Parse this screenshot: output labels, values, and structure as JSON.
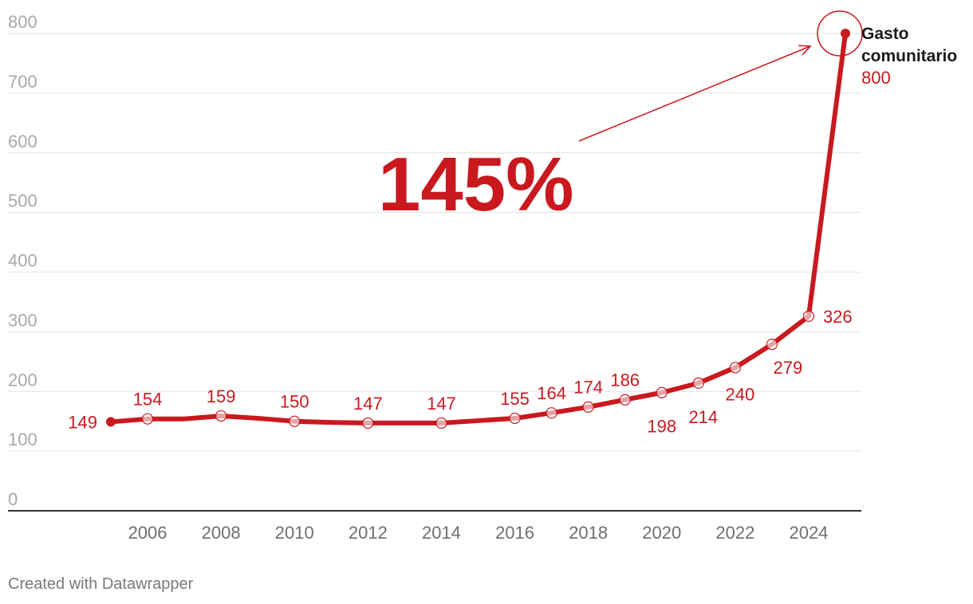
{
  "chart_data": {
    "type": "line",
    "title": "",
    "xlabel": "",
    "ylabel": "",
    "x": [
      2005,
      2006,
      2007,
      2008,
      2009,
      2010,
      2011,
      2012,
      2013,
      2014,
      2015,
      2016,
      2017,
      2018,
      2019,
      2020,
      2021,
      2022,
      2023,
      2024,
      2025
    ],
    "series": [
      {
        "name": "Gasto comunitario",
        "name_lines": [
          "Gasto",
          "comunitario"
        ],
        "values": [
          149,
          154,
          154,
          159,
          155,
          150,
          148,
          147,
          147,
          147,
          151,
          155,
          164,
          174,
          186,
          198,
          214,
          240,
          279,
          326,
          800
        ],
        "color": "#c9191e"
      }
    ],
    "x_ticks": [
      "2006",
      "2008",
      "2010",
      "2012",
      "2014",
      "2016",
      "2018",
      "2020",
      "2022",
      "2024"
    ],
    "y_ticks": [
      "0",
      "100",
      "200",
      "300",
      "400",
      "500",
      "600",
      "700",
      "800"
    ],
    "ylim": [
      0,
      800
    ],
    "grid": true,
    "data_labels": [
      {
        "year": 2005,
        "text": "149",
        "side": "left"
      },
      {
        "year": 2006,
        "text": "154",
        "side": "above"
      },
      {
        "year": 2008,
        "text": "159",
        "side": "above"
      },
      {
        "year": 2010,
        "text": "150",
        "side": "above"
      },
      {
        "year": 2012,
        "text": "147",
        "side": "above"
      },
      {
        "year": 2014,
        "text": "147",
        "side": "above"
      },
      {
        "year": 2016,
        "text": "155",
        "side": "above"
      },
      {
        "year": 2017,
        "text": "164",
        "side": "above"
      },
      {
        "year": 2018,
        "text": "174",
        "side": "above"
      },
      {
        "year": 2019,
        "text": "186",
        "side": "above"
      },
      {
        "year": 2020,
        "text": "198",
        "side": "below"
      },
      {
        "year": 2021,
        "text": "214",
        "side": "below"
      },
      {
        "year": 2022,
        "text": "240",
        "side": "below"
      },
      {
        "year": 2023,
        "text": "279",
        "side": "below-right"
      },
      {
        "year": 2024,
        "text": "326",
        "side": "right"
      },
      {
        "year": 2025,
        "text": "800",
        "side": "end"
      }
    ],
    "annotation": {
      "text": "145%"
    }
  },
  "footer": {
    "credit": "Created with Datawrapper"
  }
}
